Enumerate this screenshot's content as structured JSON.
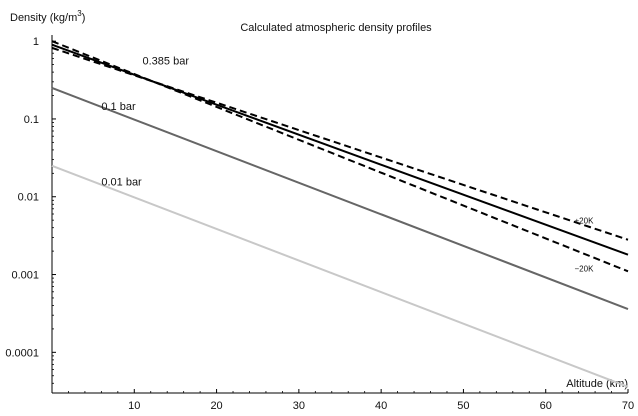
{
  "chart_data": {
    "type": "line",
    "title": "Calculated atmospheric density profiles",
    "xlabel": "Altitude (km)",
    "ylabel": "Density (kg/m",
    "ylabel_sup": "3",
    "ylabel_close": ")",
    "xscale": "linear",
    "yscale": "log",
    "xlim": [
      0,
      70
    ],
    "ylim": [
      3e-05,
      1.2
    ],
    "xticks": [
      10,
      20,
      30,
      40,
      50,
      60,
      70
    ],
    "xtick_labels": [
      "10",
      "20",
      "30",
      "40",
      "50",
      "60",
      "70"
    ],
    "yticks": [
      1,
      0.1,
      0.01,
      0.001,
      0.0001
    ],
    "ytick_labels": [
      "1",
      "0.1",
      "0.01",
      "0.001",
      "0.0001"
    ],
    "grid": false,
    "series": [
      {
        "name": "0.385 bar",
        "color": "#000000",
        "dash": false,
        "x": [
          0,
          70
        ],
        "y": [
          0.9,
          0.0018
        ]
      },
      {
        "name": "+20K",
        "color": "#000000",
        "dash": true,
        "x": [
          0,
          70
        ],
        "y": [
          0.82,
          0.0028
        ]
      },
      {
        "name": "−20K",
        "color": "#000000",
        "dash": true,
        "x": [
          0,
          70
        ],
        "y": [
          1.0,
          0.0011
        ]
      },
      {
        "name": "0.1 bar",
        "color": "#666666",
        "dash": false,
        "x": [
          0,
          70
        ],
        "y": [
          0.25,
          0.00036
        ]
      },
      {
        "name": "0.01 bar",
        "color": "#c8c8c8",
        "dash": false,
        "x": [
          0,
          70
        ],
        "y": [
          0.025,
          3.6e-05
        ]
      }
    ],
    "annotations": [
      {
        "text": "0.385 bar",
        "x": 11,
        "y": 0.5
      },
      {
        "text": "0.1 bar",
        "x": 6,
        "y": 0.13
      },
      {
        "text": "0.01 bar",
        "x": 6,
        "y": 0.014
      },
      {
        "text": "+20K",
        "x": 63.5,
        "y": 0.0045,
        "small": true
      },
      {
        "text": "−20K",
        "x": 63.5,
        "y": 0.0011,
        "small": true
      }
    ]
  }
}
